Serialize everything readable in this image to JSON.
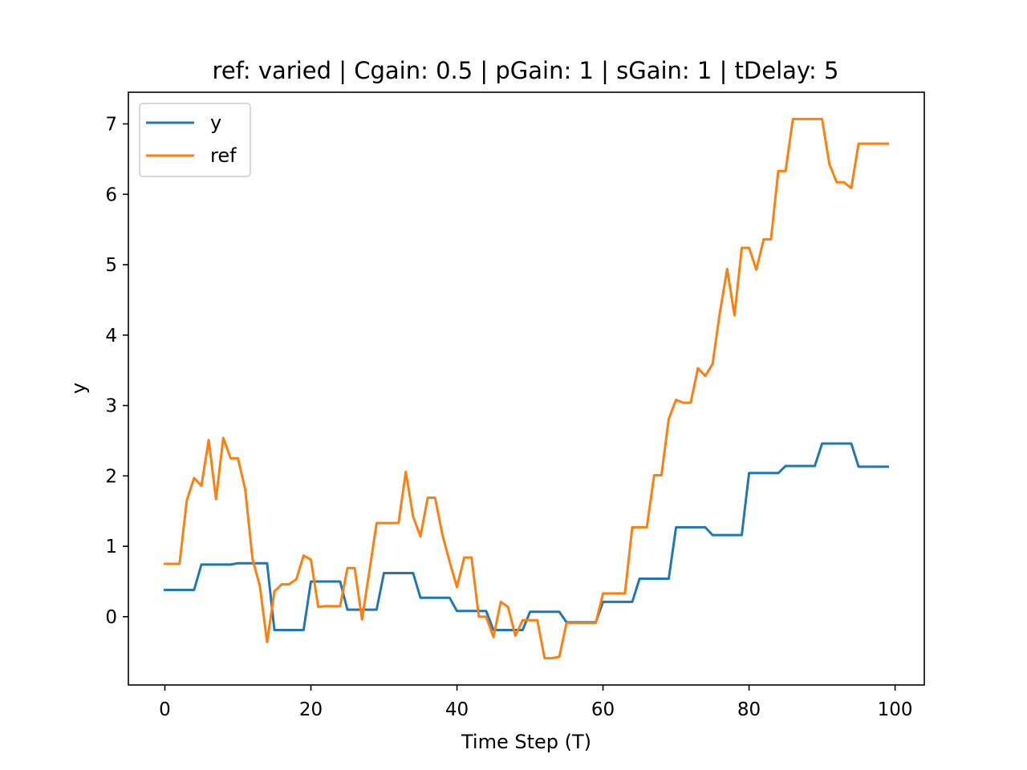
{
  "chart_data": {
    "type": "line",
    "title": "ref: varied | Cgain: 0.5 | pGain: 1 | sGain: 1 | tDelay: 5",
    "xlabel": "Time Step (T)",
    "ylabel": "y",
    "xlim": [
      -5,
      104
    ],
    "ylim": [
      -0.97,
      7.45
    ],
    "xticks": [
      0,
      20,
      40,
      60,
      80,
      100
    ],
    "yticks": [
      0,
      1,
      2,
      3,
      4,
      5,
      6,
      7
    ],
    "grid": false,
    "legend": "upper left",
    "x": [
      0,
      1,
      2,
      3,
      4,
      5,
      6,
      7,
      8,
      9,
      10,
      11,
      12,
      13,
      14,
      15,
      16,
      17,
      18,
      19,
      20,
      21,
      22,
      23,
      24,
      25,
      26,
      27,
      28,
      29,
      30,
      31,
      32,
      33,
      34,
      35,
      36,
      37,
      38,
      39,
      40,
      41,
      42,
      43,
      44,
      45,
      46,
      47,
      48,
      49,
      50,
      51,
      52,
      53,
      54,
      55,
      56,
      57,
      58,
      59,
      60,
      61,
      62,
      63,
      64,
      65,
      66,
      67,
      68,
      69,
      70,
      71,
      72,
      73,
      74,
      75,
      76,
      77,
      78,
      79,
      80,
      81,
      82,
      83,
      84,
      85,
      86,
      87,
      88,
      89,
      90,
      91,
      92,
      93,
      94,
      95,
      96,
      97,
      98,
      99
    ],
    "series": [
      {
        "name": "y",
        "color": "#1f77b4",
        "values": [
          0.38,
          0.38,
          0.38,
          0.38,
          0.38,
          0.74,
          0.74,
          0.74,
          0.74,
          0.74,
          0.76,
          0.76,
          0.76,
          0.76,
          0.76,
          -0.19,
          -0.19,
          -0.19,
          -0.19,
          -0.19,
          0.5,
          0.5,
          0.5,
          0.5,
          0.5,
          0.1,
          0.1,
          0.1,
          0.1,
          0.1,
          0.62,
          0.62,
          0.62,
          0.62,
          0.62,
          0.27,
          0.27,
          0.27,
          0.27,
          0.27,
          0.08,
          0.08,
          0.08,
          0.08,
          0.08,
          -0.19,
          -0.19,
          -0.19,
          -0.19,
          -0.19,
          0.07,
          0.07,
          0.07,
          0.07,
          0.07,
          -0.08,
          -0.08,
          -0.08,
          -0.08,
          -0.08,
          0.21,
          0.21,
          0.21,
          0.21,
          0.21,
          0.54,
          0.54,
          0.54,
          0.54,
          0.54,
          1.27,
          1.27,
          1.27,
          1.27,
          1.27,
          1.16,
          1.16,
          1.16,
          1.16,
          1.16,
          2.04,
          2.04,
          2.04,
          2.04,
          2.04,
          2.14,
          2.14,
          2.14,
          2.14,
          2.14,
          2.46,
          2.46,
          2.46,
          2.46,
          2.46,
          2.13,
          2.13,
          2.13,
          2.13,
          2.13
        ]
      },
      {
        "name": "ref",
        "color": "#ff7f0e",
        "values": [
          0.75,
          0.75,
          0.75,
          1.65,
          1.97,
          1.86,
          2.51,
          1.67,
          2.54,
          2.25,
          2.25,
          1.81,
          0.82,
          0.44,
          -0.36,
          0.36,
          0.46,
          0.46,
          0.53,
          0.87,
          0.81,
          0.14,
          0.15,
          0.15,
          0.15,
          0.69,
          0.69,
          -0.04,
          0.64,
          1.33,
          1.33,
          1.33,
          1.33,
          2.06,
          1.42,
          1.14,
          1.69,
          1.69,
          1.17,
          0.78,
          0.42,
          0.84,
          0.84,
          0.0,
          0.0,
          -0.29,
          0.21,
          0.14,
          -0.27,
          -0.05,
          -0.05,
          -0.05,
          -0.59,
          -0.59,
          -0.57,
          -0.09,
          -0.09,
          -0.09,
          -0.09,
          -0.09,
          0.33,
          0.33,
          0.33,
          0.33,
          1.27,
          1.27,
          1.27,
          2.01,
          2.01,
          2.81,
          3.08,
          3.04,
          3.04,
          3.53,
          3.42,
          3.59,
          4.32,
          4.94,
          4.28,
          5.24,
          5.24,
          4.93,
          5.36,
          5.36,
          6.33,
          6.33,
          7.07,
          7.07,
          7.07,
          7.07,
          7.07,
          6.43,
          6.17,
          6.17,
          6.09,
          6.72,
          6.72,
          6.72,
          6.72,
          6.72
        ]
      }
    ]
  }
}
